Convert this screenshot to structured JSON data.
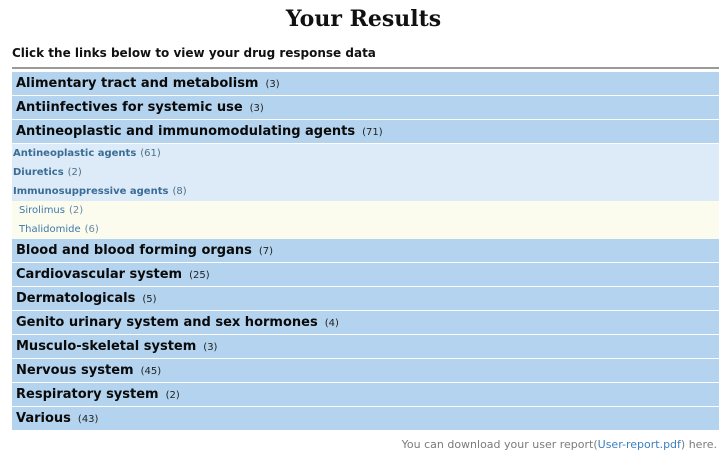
{
  "page_title": "Your Results",
  "instructions": "Click the links below to view your drug response data",
  "categories_top": [
    {
      "label": "Alimentary tract and metabolism",
      "count": "(3)"
    },
    {
      "label": "Antiinfectives for systemic use",
      "count": "(3)"
    },
    {
      "label": "Antineoplastic and immunomodulating agents",
      "count": "(71)"
    }
  ],
  "subcategories": [
    {
      "label": "Antineoplastic agents",
      "count": "(61)"
    },
    {
      "label": "Diuretics",
      "count": "(2)"
    },
    {
      "label": "Immunosuppressive agents",
      "count": "(8)"
    }
  ],
  "drugs": [
    {
      "label": "Sirolimus",
      "count": "(2)"
    },
    {
      "label": "Thalidomide",
      "count": "(6)"
    }
  ],
  "categories_bottom": [
    {
      "label": "Blood and blood forming organs",
      "count": "(7)"
    },
    {
      "label": "Cardiovascular system",
      "count": "(25)"
    },
    {
      "label": "Dermatologicals",
      "count": "(5)"
    },
    {
      "label": "Genito urinary system and sex hormones",
      "count": "(4)"
    },
    {
      "label": "Musculo-skeletal system",
      "count": "(3)"
    },
    {
      "label": "Nervous system",
      "count": "(45)"
    },
    {
      "label": "Respiratory system",
      "count": "(2)"
    },
    {
      "label": "Various",
      "count": "(43)"
    }
  ],
  "footer": {
    "prefix": "You can download your user report(",
    "link": "User-report.pdf",
    "suffix": ") here."
  },
  "colors": {
    "category_bg": "#b3d3ef",
    "subcategory_bg": "#ddebf8",
    "drug_bg": "#fbfbee",
    "link": "#3c7fbf"
  }
}
